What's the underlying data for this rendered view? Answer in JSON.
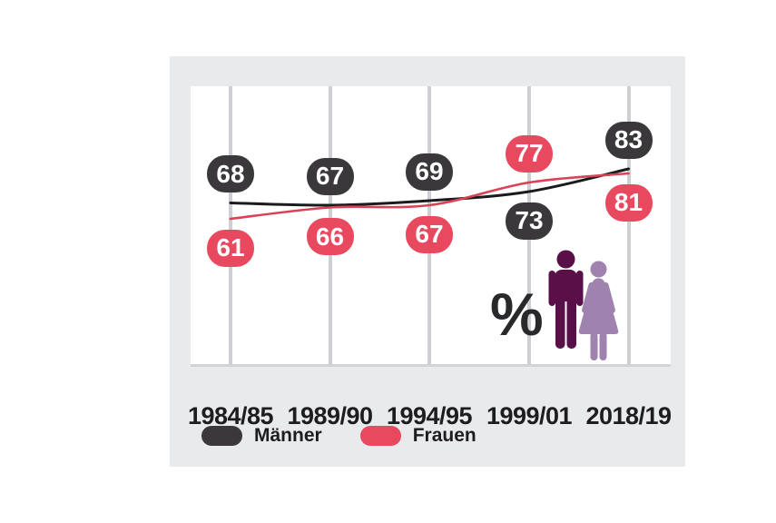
{
  "chart_data": {
    "type": "line",
    "title": "",
    "xlabel": "",
    "ylabel": "",
    "unit": "%",
    "categories": [
      "1984/85",
      "1989/90",
      "1994/95",
      "1999/01",
      "2018/19"
    ],
    "series": [
      {
        "name": "Männer",
        "values": [
          68,
          67,
          69,
          73,
          83
        ],
        "line_color": "#1b1b1d",
        "badge_color": "#3a383b"
      },
      {
        "name": "Frauen",
        "values": [
          61,
          66,
          67,
          77,
          81
        ],
        "line_color": "#d94355",
        "badge_color": "#e8495e"
      }
    ],
    "value_labels": "badges-at-each-point",
    "grid": "vertical-only",
    "legend_position": "bottom-left",
    "approx_value_range": [
      55,
      90
    ]
  },
  "legend": {
    "items": [
      {
        "label": "Männer",
        "color": "#3a383b"
      },
      {
        "label": "Frauen",
        "color": "#e8495e"
      }
    ]
  },
  "decoration": {
    "percent_symbol": "%",
    "man_color": "#591049",
    "woman_color": "#9f83ae"
  },
  "colors": {
    "page_bg": "#ffffff",
    "card_bg": "#e9eaec",
    "plot_bg": "#ffffff",
    "gridline": "#cdcfd3",
    "axis_line": "#d2d3d6",
    "axis_text": "#1d1d1f",
    "badge_text": "#ffffff"
  }
}
